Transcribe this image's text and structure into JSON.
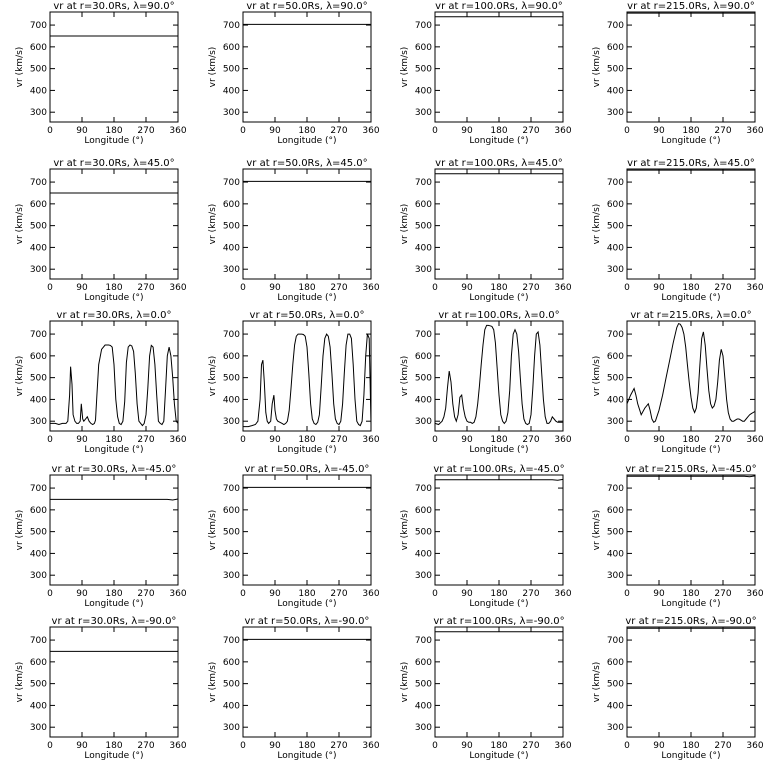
{
  "figure": {
    "axis_common": {
      "xlabel": "Longitude (°)",
      "ylabel": "vr (km/s)",
      "xlim": [
        0,
        360
      ],
      "ylim": [
        255,
        760
      ],
      "xticks": [
        0,
        90,
        180,
        270,
        360
      ],
      "yticks": [
        300,
        400,
        500,
        600,
        700
      ]
    }
  },
  "chart_data": [
    {
      "type": "line",
      "title": "vr at r=30.0Rs, λ=90.0°",
      "xlabel": "Longitude (°)",
      "ylabel": "vr (km/s)",
      "series": [
        {
          "x": [
            0,
            360
          ],
          "y": [
            650,
            650
          ]
        }
      ]
    },
    {
      "type": "line",
      "title": "vr at r=50.0Rs, λ=90.0°",
      "xlabel": "Longitude (°)",
      "ylabel": "vr (km/s)",
      "series": [
        {
          "x": [
            0,
            360
          ],
          "y": [
            703,
            703
          ]
        }
      ]
    },
    {
      "type": "line",
      "title": "vr at r=100.0Rs, λ=90.0°",
      "xlabel": "Longitude (°)",
      "ylabel": "vr (km/s)",
      "series": [
        {
          "x": [
            0,
            360
          ],
          "y": [
            738,
            738
          ]
        }
      ]
    },
    {
      "type": "line",
      "title": "vr at r=215.0Rs, λ=90.0°",
      "xlabel": "Longitude (°)",
      "ylabel": "vr (km/s)",
      "series": [
        {
          "x": [
            0,
            360
          ],
          "y": [
            755,
            755
          ]
        }
      ]
    },
    {
      "type": "line",
      "title": "vr at r=30.0Rs, λ=45.0°",
      "xlabel": "Longitude (°)",
      "ylabel": "vr (km/s)",
      "series": [
        {
          "x": [
            0,
            360
          ],
          "y": [
            650,
            650
          ]
        }
      ]
    },
    {
      "type": "line",
      "title": "vr at r=50.0Rs, λ=45.0°",
      "xlabel": "Longitude (°)",
      "ylabel": "vr (km/s)",
      "series": [
        {
          "x": [
            0,
            360
          ],
          "y": [
            703,
            703
          ]
        }
      ]
    },
    {
      "type": "line",
      "title": "vr at r=100.0Rs, λ=45.0°",
      "xlabel": "Longitude (°)",
      "ylabel": "vr (km/s)",
      "series": [
        {
          "x": [
            0,
            360
          ],
          "y": [
            738,
            738
          ]
        }
      ]
    },
    {
      "type": "line",
      "title": "vr at r=215.0Rs, λ=45.0°",
      "xlabel": "Longitude (°)",
      "ylabel": "vr (km/s)",
      "series": [
        {
          "x": [
            0,
            360
          ],
          "y": [
            755,
            755
          ]
        }
      ]
    },
    {
      "type": "line",
      "title": "vr at r=30.0Rs, λ=0.0°",
      "xlabel": "Longitude (°)",
      "ylabel": "vr (km/s)",
      "series": [
        {
          "x": [
            0,
            15,
            25,
            35,
            45,
            50,
            55,
            58,
            62,
            65,
            70,
            75,
            80,
            85,
            88,
            92,
            95,
            100,
            105,
            110,
            115,
            120,
            125,
            128,
            132,
            137,
            145,
            155,
            160,
            165,
            170,
            175,
            180,
            185,
            190,
            195,
            200,
            205,
            210,
            215,
            220,
            225,
            230,
            235,
            240,
            245,
            250,
            255,
            260,
            265,
            270,
            275,
            280,
            285,
            290,
            295,
            300,
            305,
            310,
            315,
            320,
            325,
            330,
            335,
            340,
            345,
            350,
            355,
            360
          ],
          "y": [
            290,
            290,
            285,
            290,
            290,
            300,
            420,
            550,
            470,
            330,
            300,
            290,
            290,
            300,
            380,
            310,
            300,
            310,
            320,
            300,
            290,
            285,
            290,
            305,
            420,
            560,
            630,
            650,
            650,
            650,
            648,
            640,
            560,
            400,
            320,
            290,
            285,
            300,
            390,
            570,
            640,
            650,
            645,
            620,
            520,
            380,
            300,
            290,
            280,
            290,
            330,
            450,
            600,
            648,
            640,
            560,
            420,
            300,
            290,
            285,
            300,
            450,
            600,
            640,
            600,
            500,
            380,
            300,
            290
          ]
        }
      ]
    },
    {
      "type": "line",
      "title": "vr at r=50.0Rs, λ=0.0°",
      "xlabel": "Longitude (°)",
      "ylabel": "vr (km/s)",
      "series": [
        {
          "x": [
            0,
            15,
            25,
            35,
            42,
            48,
            52,
            56,
            60,
            64,
            68,
            72,
            78,
            82,
            87,
            90,
            94,
            98,
            104,
            110,
            115,
            120,
            125,
            130,
            135,
            140,
            145,
            150,
            155,
            160,
            165,
            170,
            175,
            180,
            185,
            190,
            195,
            200,
            205,
            210,
            215,
            220,
            225,
            230,
            235,
            240,
            245,
            250,
            255,
            260,
            265,
            270,
            275,
            280,
            285,
            290,
            295,
            300,
            305,
            310,
            315,
            320,
            325,
            330,
            335,
            340,
            345,
            350,
            355,
            360
          ],
          "y": [
            275,
            275,
            280,
            285,
            300,
            400,
            560,
            580,
            480,
            340,
            300,
            290,
            300,
            380,
            420,
            350,
            310,
            300,
            295,
            290,
            285,
            290,
            300,
            350,
            450,
            560,
            650,
            690,
            700,
            700,
            700,
            698,
            690,
            640,
            520,
            380,
            310,
            290,
            285,
            295,
            330,
            460,
            600,
            680,
            700,
            690,
            640,
            520,
            380,
            310,
            290,
            285,
            300,
            380,
            520,
            650,
            700,
            700,
            680,
            560,
            400,
            300,
            285,
            280,
            300,
            420,
            600,
            700,
            680,
            285
          ]
        }
      ]
    },
    {
      "type": "line",
      "title": "vr at r=100.0Rs, λ=0.0°",
      "xlabel": "Longitude (°)",
      "ylabel": "vr (km/s)",
      "series": [
        {
          "x": [
            0,
            10,
            20,
            25,
            30,
            35,
            40,
            45,
            50,
            55,
            60,
            65,
            70,
            75,
            80,
            85,
            90,
            95,
            100,
            105,
            110,
            115,
            120,
            125,
            130,
            135,
            140,
            145,
            150,
            155,
            160,
            165,
            170,
            175,
            180,
            185,
            190,
            195,
            200,
            205,
            210,
            215,
            220,
            225,
            230,
            235,
            240,
            245,
            250,
            255,
            260,
            265,
            270,
            275,
            280,
            285,
            290,
            295,
            300,
            305,
            310,
            315,
            320,
            325,
            330,
            335,
            340,
            345,
            350,
            355,
            360
          ],
          "y": [
            290,
            285,
            300,
            320,
            360,
            450,
            530,
            480,
            380,
            320,
            300,
            330,
            410,
            420,
            360,
            320,
            300,
            295,
            295,
            290,
            295,
            320,
            380,
            460,
            560,
            650,
            720,
            740,
            740,
            738,
            735,
            720,
            660,
            540,
            420,
            330,
            300,
            290,
            300,
            340,
            440,
            600,
            700,
            720,
            700,
            620,
            500,
            380,
            310,
            290,
            285,
            290,
            330,
            450,
            600,
            700,
            710,
            650,
            520,
            400,
            320,
            290,
            290,
            300,
            320,
            310,
            300,
            295,
            295,
            295,
            295
          ]
        }
      ]
    },
    {
      "type": "line",
      "title": "vr at r=215.0Rs, λ=0.0°",
      "xlabel": "Longitude (°)",
      "ylabel": "vr (km/s)",
      "series": [
        {
          "x": [
            0,
            10,
            20,
            25,
            30,
            40,
            50,
            60,
            65,
            70,
            75,
            80,
            90,
            100,
            110,
            120,
            130,
            140,
            145,
            150,
            155,
            160,
            165,
            170,
            175,
            180,
            185,
            190,
            195,
            200,
            205,
            210,
            215,
            220,
            225,
            230,
            235,
            240,
            245,
            250,
            255,
            260,
            265,
            270,
            275,
            280,
            285,
            290,
            295,
            300,
            305,
            310,
            315,
            320,
            325,
            330,
            335,
            340,
            345,
            350,
            355,
            360
          ],
          "y": [
            380,
            420,
            450,
            420,
            380,
            330,
            360,
            380,
            350,
            310,
            295,
            300,
            350,
            420,
            500,
            580,
            660,
            730,
            748,
            745,
            730,
            700,
            640,
            560,
            480,
            410,
            360,
            340,
            360,
            430,
            560,
            680,
            710,
            650,
            540,
            440,
            380,
            360,
            370,
            400,
            480,
            580,
            630,
            600,
            500,
            400,
            340,
            310,
            300,
            300,
            305,
            310,
            310,
            305,
            300,
            300,
            310,
            320,
            330,
            335,
            340,
            345
          ]
        }
      ]
    },
    {
      "type": "line",
      "title": "vr at r=30.0Rs, λ=-45.0°",
      "xlabel": "Longitude (°)",
      "ylabel": "vr (km/s)",
      "series": [
        {
          "x": [
            0,
            330,
            345,
            360
          ],
          "y": [
            648,
            648,
            645,
            650
          ]
        }
      ]
    },
    {
      "type": "line",
      "title": "vr at r=50.0Rs, λ=-45.0°",
      "xlabel": "Longitude (°)",
      "ylabel": "vr (km/s)",
      "series": [
        {
          "x": [
            0,
            360
          ],
          "y": [
            703,
            703
          ]
        }
      ]
    },
    {
      "type": "line",
      "title": "vr at r=100.0Rs, λ=-45.0°",
      "xlabel": "Longitude (°)",
      "ylabel": "vr (km/s)",
      "series": [
        {
          "x": [
            0,
            330,
            345,
            360
          ],
          "y": [
            738,
            738,
            736,
            740
          ]
        }
      ]
    },
    {
      "type": "line",
      "title": "vr at r=215.0Rs, λ=-45.0°",
      "xlabel": "Longitude (°)",
      "ylabel": "vr (km/s)",
      "series": [
        {
          "x": [
            0,
            330,
            345,
            360
          ],
          "y": [
            754,
            754,
            752,
            756
          ]
        }
      ]
    },
    {
      "type": "line",
      "title": "vr at r=30.0Rs, λ=-90.0°",
      "xlabel": "Longitude (°)",
      "ylabel": "vr (km/s)",
      "series": [
        {
          "x": [
            0,
            360
          ],
          "y": [
            648,
            648
          ]
        }
      ]
    },
    {
      "type": "line",
      "title": "vr at r=50.0Rs, λ=-90.0°",
      "xlabel": "Longitude (°)",
      "ylabel": "vr (km/s)",
      "series": [
        {
          "x": [
            0,
            360
          ],
          "y": [
            703,
            703
          ]
        }
      ]
    },
    {
      "type": "line",
      "title": "vr at r=100.0Rs, λ=-90.0°",
      "xlabel": "Longitude (°)",
      "ylabel": "vr (km/s)",
      "series": [
        {
          "x": [
            0,
            360
          ],
          "y": [
            738,
            738
          ]
        }
      ]
    },
    {
      "type": "line",
      "title": "vr at r=215.0Rs, λ=-90.0°",
      "xlabel": "Longitude (°)",
      "ylabel": "vr (km/s)",
      "series": [
        {
          "x": [
            0,
            360
          ],
          "y": [
            754,
            754
          ]
        }
      ]
    }
  ]
}
